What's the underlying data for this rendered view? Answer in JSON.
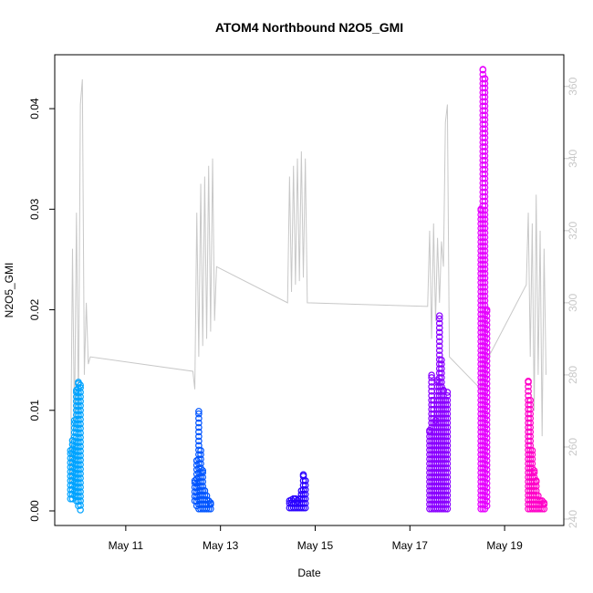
{
  "chart_data": {
    "type": "scatter",
    "title": "ATOM4 Northbound N2O5_GMI",
    "xlabel": "Date",
    "ylabel": "N2O5_GMI",
    "xlim": [
      "2018-05-09T12:00",
      "2018-05-20T06:00"
    ],
    "ylim": [
      0,
      0.044
    ],
    "y2lim": [
      240,
      365
    ],
    "x_ticks": [
      {
        "date": "2018-05-11",
        "label": "May 11"
      },
      {
        "date": "2018-05-13",
        "label": "May 13"
      },
      {
        "date": "2018-05-15",
        "label": "May 15"
      },
      {
        "date": "2018-05-17",
        "label": "May 17"
      },
      {
        "date": "2018-05-19",
        "label": "May 19"
      }
    ],
    "y_ticks": [
      0.0,
      0.01,
      0.02,
      0.03,
      0.04
    ],
    "y_tick_labels": [
      "0.00",
      "0.01",
      "0.02",
      "0.03",
      "0.04"
    ],
    "y2_ticks": [
      240,
      260,
      280,
      300,
      320,
      340,
      360
    ],
    "y2_tick_labels": [
      "240",
      "260",
      "280",
      "300",
      "320",
      "340",
      "360"
    ],
    "secondary_line_color": "#c8c8c8",
    "series": [
      {
        "color": "#00a3ff",
        "x": [
          "2018-05-09T20:00",
          "2018-05-09T21:00",
          "2018-05-09T22:00",
          "2018-05-09T23:00",
          "2018-05-10T00:00",
          "2018-05-10T01:00"
        ],
        "min": [
          0.0012,
          0.0012,
          0.0015,
          0.001,
          0.0005,
          0.0001
        ],
        "max": [
          0.006,
          0.007,
          0.009,
          0.012,
          0.0128,
          0.0125
        ]
      },
      {
        "color": "#0055ff",
        "x": [
          "2018-05-12T11:00",
          "2018-05-12T12:00",
          "2018-05-12T13:00",
          "2018-05-12T14:00",
          "2018-05-12T15:00",
          "2018-05-12T16:00",
          "2018-05-12T17:00",
          "2018-05-12T18:00",
          "2018-05-12T19:00"
        ],
        "min": [
          0.001,
          0.0005,
          0.0002,
          0.0002,
          0.0002,
          0.0002,
          0.0002,
          0.0002,
          0.0002
        ],
        "max": [
          0.003,
          0.005,
          0.0099,
          0.006,
          0.004,
          0.002,
          0.0015,
          0.001,
          0.0008
        ]
      },
      {
        "color": "#2a00ff",
        "x": [
          "2018-05-14T11:00",
          "2018-05-14T12:00",
          "2018-05-14T13:00",
          "2018-05-14T14:00",
          "2018-05-14T15:00",
          "2018-05-14T16:00",
          "2018-05-14T17:00",
          "2018-05-14T18:00",
          "2018-05-14T19:00"
        ],
        "min": [
          0.0003,
          0.0003,
          0.0003,
          0.0003,
          0.0003,
          0.0003,
          0.0003,
          0.0003,
          0.0003
        ],
        "max": [
          0.001,
          0.0011,
          0.0012,
          0.0012,
          0.001,
          0.0012,
          0.002,
          0.0036,
          0.003
        ]
      },
      {
        "color": "#8a00ff",
        "x": [
          "2018-05-17T10:00",
          "2018-05-17T11:00",
          "2018-05-17T12:00",
          "2018-05-17T13:00",
          "2018-05-17T14:00",
          "2018-05-17T15:00",
          "2018-05-17T16:00",
          "2018-05-17T17:00",
          "2018-05-17T18:00",
          "2018-05-17T19:00"
        ],
        "min": [
          0.0002,
          0.0002,
          0.0002,
          0.0002,
          0.0002,
          0.0002,
          0.0002,
          0.0002,
          0.0002,
          0.0002
        ],
        "max": [
          0.008,
          0.0135,
          0.011,
          0.009,
          0.013,
          0.0194,
          0.015,
          0.012,
          0.011,
          0.0118
        ]
      },
      {
        "color": "#e600ff",
        "x": [
          "2018-05-18T12:00",
          "2018-05-18T13:00",
          "2018-05-18T14:00",
          "2018-05-18T15:00"
        ],
        "min": [
          0.0002,
          0.0002,
          0.0002,
          0.0005
        ],
        "max": [
          0.03,
          0.0439,
          0.043,
          0.02
        ]
      },
      {
        "color": "#ff00c8",
        "x": [
          "2018-05-19T12:00",
          "2018-05-19T13:00",
          "2018-05-19T14:00",
          "2018-05-19T15:00",
          "2018-05-19T16:00",
          "2018-05-19T17:00",
          "2018-05-19T18:00",
          "2018-05-19T19:00",
          "2018-05-19T20:00"
        ],
        "min": [
          0.0002,
          0.0002,
          0.0002,
          0.0002,
          0.0002,
          0.0002,
          0.0002,
          0.0002,
          0.0002
        ],
        "max": [
          0.0129,
          0.011,
          0.006,
          0.004,
          0.003,
          0.0015,
          0.001,
          0.001,
          0.0008
        ]
      }
    ],
    "secondary_line": [
      [
        "2018-05-09T20:00",
        250
      ],
      [
        "2018-05-09T21:00",
        315
      ],
      [
        "2018-05-09T22:00",
        265
      ],
      [
        "2018-05-09T23:00",
        325
      ],
      [
        "2018-05-10T00:00",
        270
      ],
      [
        "2018-05-10T01:00",
        355
      ],
      [
        "2018-05-10T02:00",
        362
      ],
      [
        "2018-05-10T03:00",
        280
      ],
      [
        "2018-05-10T04:00",
        300
      ],
      [
        "2018-05-10T05:00",
        283
      ],
      [
        "2018-05-10T06:00",
        285
      ],
      [
        "2018-05-12T10:00",
        281
      ],
      [
        "2018-05-12T11:00",
        276
      ],
      [
        "2018-05-12T12:00",
        325
      ],
      [
        "2018-05-12T13:00",
        285
      ],
      [
        "2018-05-12T14:00",
        333
      ],
      [
        "2018-05-12T15:00",
        288
      ],
      [
        "2018-05-12T16:00",
        335
      ],
      [
        "2018-05-12T17:00",
        290
      ],
      [
        "2018-05-12T18:00",
        338
      ],
      [
        "2018-05-12T19:00",
        292
      ],
      [
        "2018-05-12T20:00",
        340
      ],
      [
        "2018-05-12T21:00",
        295
      ],
      [
        "2018-05-12T22:00",
        310
      ],
      [
        "2018-05-14T10:00",
        300
      ],
      [
        "2018-05-14T11:00",
        335
      ],
      [
        "2018-05-14T12:00",
        303
      ],
      [
        "2018-05-14T13:00",
        338
      ],
      [
        "2018-05-14T14:00",
        305
      ],
      [
        "2018-05-14T15:00",
        340
      ],
      [
        "2018-05-14T16:00",
        306
      ],
      [
        "2018-05-14T17:00",
        342
      ],
      [
        "2018-05-14T18:00",
        307
      ],
      [
        "2018-05-14T19:00",
        340
      ],
      [
        "2018-05-14T20:00",
        300
      ],
      [
        "2018-05-17T09:00",
        299
      ],
      [
        "2018-05-17T10:00",
        320
      ],
      [
        "2018-05-17T11:00",
        290
      ],
      [
        "2018-05-17T12:00",
        322
      ],
      [
        "2018-05-17T13:00",
        295
      ],
      [
        "2018-05-17T14:00",
        318
      ],
      [
        "2018-05-17T15:00",
        300
      ],
      [
        "2018-05-17T16:00",
        317
      ],
      [
        "2018-05-17T17:00",
        310
      ],
      [
        "2018-05-17T18:00",
        350
      ],
      [
        "2018-05-17T19:00",
        355
      ],
      [
        "2018-05-17T20:00",
        285
      ],
      [
        "2018-05-18T12:00",
        276
      ],
      [
        "2018-05-18T14:00",
        283
      ],
      [
        "2018-05-19T11:00",
        305
      ],
      [
        "2018-05-19T12:00",
        325
      ],
      [
        "2018-05-19T13:00",
        285
      ],
      [
        "2018-05-19T14:00",
        322
      ],
      [
        "2018-05-19T15:00",
        270
      ],
      [
        "2018-05-19T16:00",
        330
      ],
      [
        "2018-05-19T17:00",
        280
      ],
      [
        "2018-05-19T18:00",
        320
      ],
      [
        "2018-05-19T19:00",
        263
      ],
      [
        "2018-05-19T20:00",
        315
      ],
      [
        "2018-05-19T21:00",
        280
      ]
    ]
  }
}
